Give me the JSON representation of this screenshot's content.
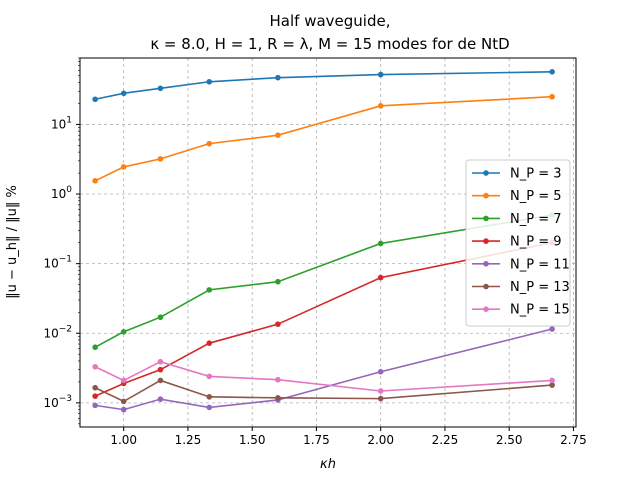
{
  "chart_data": {
    "type": "line",
    "title": "Half waveguide,",
    "subtitle": "κ = 8.0, H = 1, R = λ, M = 15 modes for de NtD",
    "xlabel": "κh",
    "ylabel": "‖u − u_h‖ / ‖u‖ %",
    "yscale": "log",
    "xlim": [
      0.83,
      2.76
    ],
    "ylim": [
      0.00045,
      90
    ],
    "xticks": [
      "1.00",
      "1.25",
      "1.50",
      "1.75",
      "2.00",
      "2.25",
      "2.50",
      "2.75"
    ],
    "yticks": [
      "10^-3",
      "10^-2",
      "10^-1",
      "10^0",
      "10^1"
    ],
    "grid": true,
    "legend_position": "center-right",
    "x": [
      0.889,
      1.0,
      1.143,
      1.333,
      1.6,
      2.0,
      2.667
    ],
    "series": [
      {
        "name": "N_P = 3",
        "color": "#1f77b4",
        "values": [
          23,
          28,
          33,
          41,
          47,
          52,
          57
        ]
      },
      {
        "name": "N_P = 5",
        "color": "#ff7f0e",
        "values": [
          1.55,
          2.45,
          3.2,
          5.3,
          7.0,
          18.5,
          25
        ]
      },
      {
        "name": "N_P = 7",
        "color": "#2ca02c",
        "values": [
          0.0063,
          0.0105,
          0.017,
          0.042,
          0.055,
          0.195,
          0.5
        ]
      },
      {
        "name": "N_P = 9",
        "color": "#d62728",
        "values": [
          0.00125,
          0.0019,
          0.003,
          0.0072,
          0.0135,
          0.063,
          0.2
        ]
      },
      {
        "name": "N_P = 11",
        "color": "#9467bd",
        "values": [
          0.00092,
          0.0008,
          0.00113,
          0.00086,
          0.0011,
          0.0028,
          0.0115
        ]
      },
      {
        "name": "N_P = 13",
        "color": "#8c564b",
        "values": [
          0.00165,
          0.00105,
          0.0021,
          0.00122,
          0.00118,
          0.00115,
          0.0018
        ]
      },
      {
        "name": "N_P = 15",
        "color": "#e377c2",
        "values": [
          0.0033,
          0.0021,
          0.0039,
          0.0024,
          0.00215,
          0.00148,
          0.0021
        ]
      }
    ]
  }
}
